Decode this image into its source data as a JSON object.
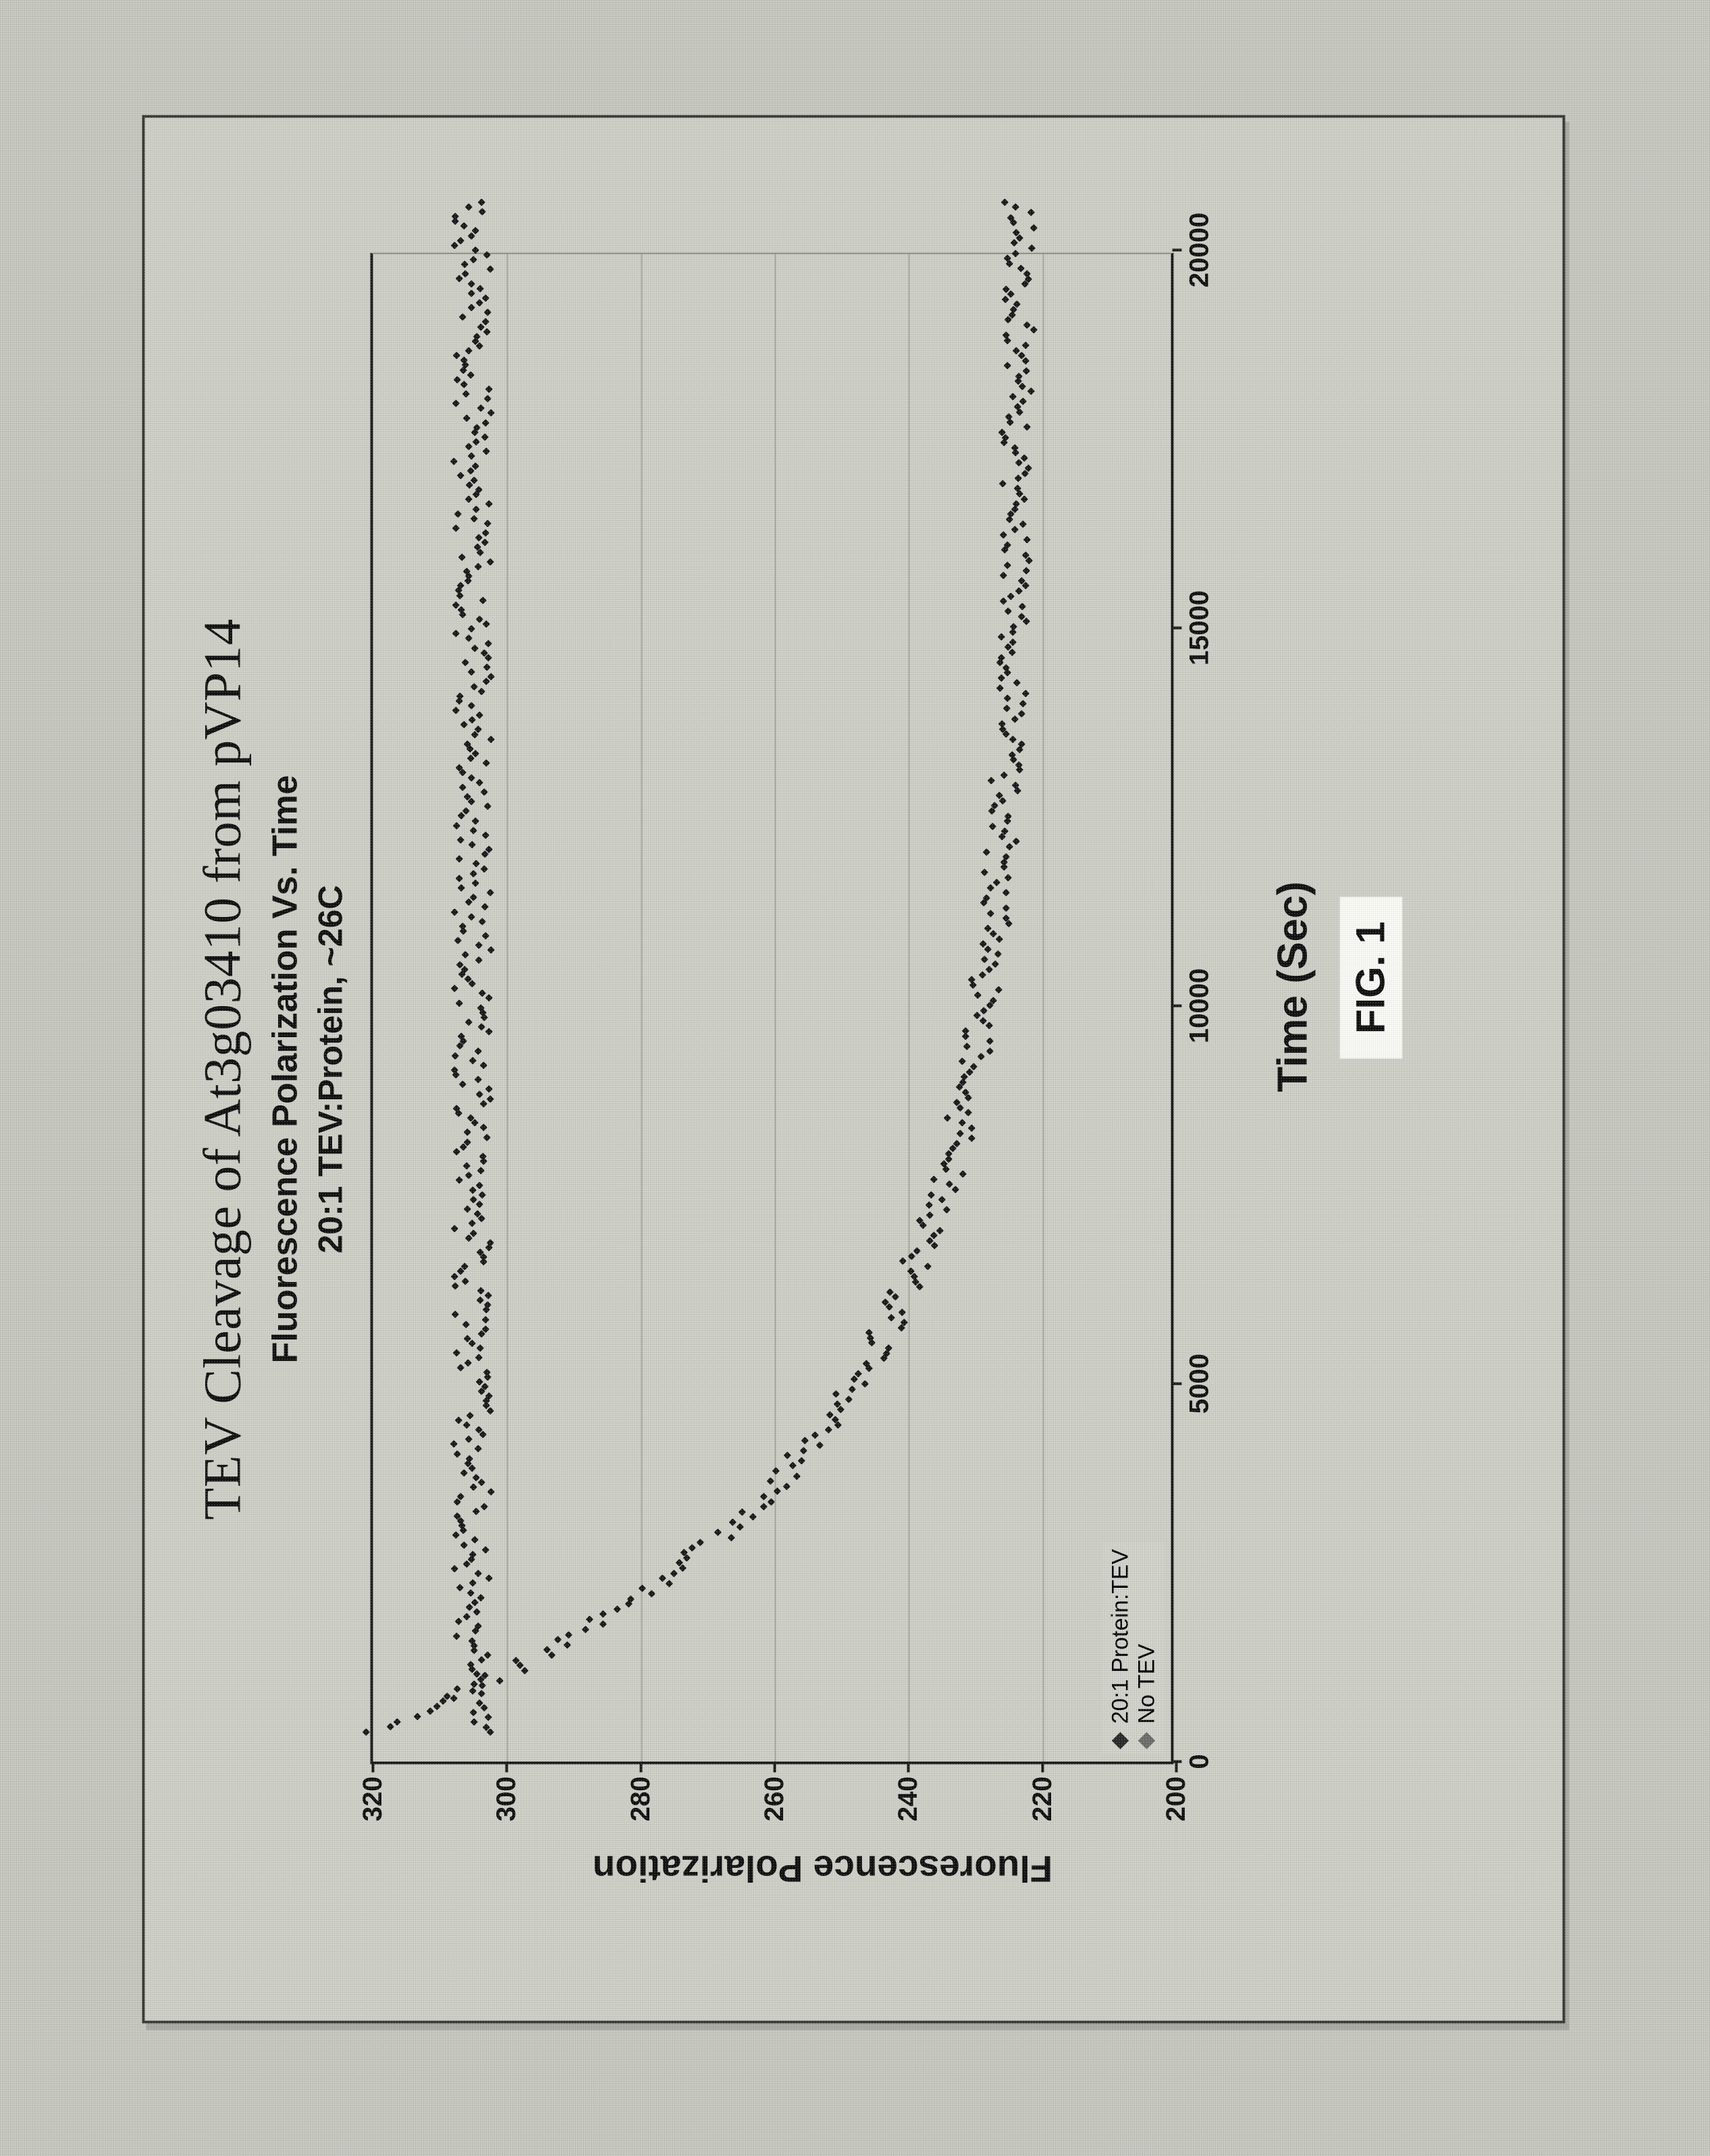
{
  "figure_label": "FIG. 1",
  "titles": {
    "main": "TEV Cleavage of At3g03410 from pVP14",
    "sub1": "Fluorescence Polarization Vs. Time",
    "sub2": "20:1 TEV:Protein, ~26C"
  },
  "chart": {
    "type": "scatter",
    "xlabel": "Time (Sec)",
    "ylabel": "Fluorescence Polarization",
    "xlim": [
      0,
      20000
    ],
    "ylim": [
      200,
      320
    ],
    "xticks": [
      0,
      5000,
      10000,
      15000,
      20000
    ],
    "yticks": [
      200,
      220,
      240,
      260,
      280,
      300,
      320
    ],
    "grid_color": "#a8a89c",
    "axis_color": "#1a1a1a",
    "background_color": "#d0d2c9",
    "label_fontsize": 40,
    "axis_title_fontsize": 58,
    "title_main_fontsize": 78,
    "title_sub_fontsize": 52,
    "marker_color": "#1a1a1a",
    "marker_size": 7.5,
    "legend": {
      "items": [
        {
          "label": "20:1 Protein:TEV"
        },
        {
          "label": "No TEV"
        }
      ]
    },
    "series_noTEV": {
      "n": 320,
      "x0": 360,
      "x1": 20600,
      "base": 305.0,
      "noise": 2.8
    },
    "series_decay": {
      "n": 300,
      "x0": 360,
      "x1": 20600,
      "y_start": 320,
      "y_end": 223,
      "tau": 3400,
      "noise": 2.3
    }
  }
}
